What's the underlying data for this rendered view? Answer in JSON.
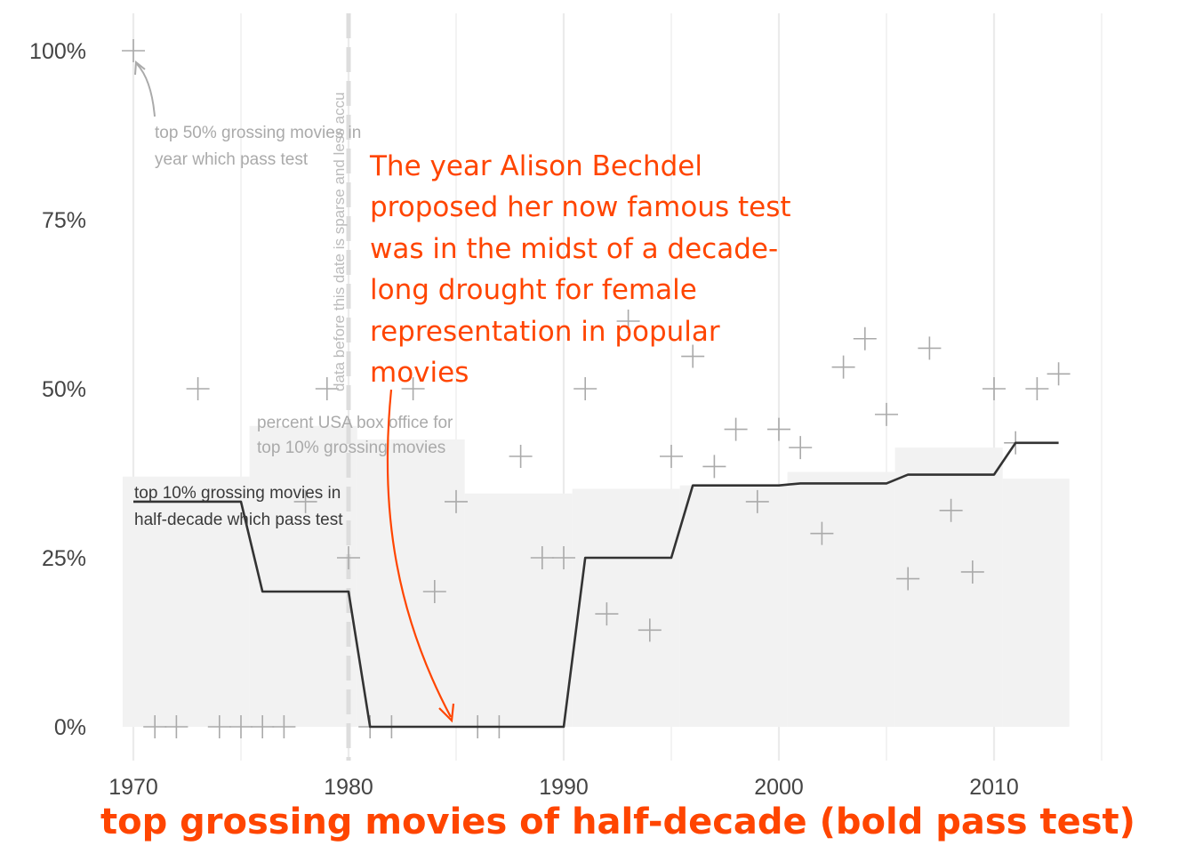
{
  "chart_data": {
    "type": "line",
    "xlabel": "top grossing movies of half-decade (bold pass test)",
    "ylabel": "",
    "xlim": [
      1969.5,
      2016
    ],
    "ylim": [
      -0.05,
      1.03
    ],
    "x_ticks": [
      1970,
      1980,
      1990,
      2000,
      2010
    ],
    "x_tick_labels": [
      "1970",
      "1980",
      "1990",
      "2000",
      "2010"
    ],
    "y_ticks": [
      0,
      0.25,
      0.5,
      0.75,
      1.0
    ],
    "y_tick_labels": [
      "0%",
      "25%",
      "50%",
      "75%",
      "100%"
    ],
    "grid": "vertical",
    "colors": {
      "grid": "#ebebeb",
      "area": "#f2f2f2",
      "line": "#333333",
      "points": "#aaaaaa",
      "accent": "#ff4500",
      "cutoff": "#dddddd"
    },
    "series": [
      {
        "type": "area",
        "name": "percent USA box office for top 10% grossing movies",
        "x_ranges": [
          [
            1969.5,
            1975.4
          ],
          [
            1975.4,
            1980.4
          ],
          [
            1980.4,
            1985.4
          ],
          [
            1985.4,
            1990.4
          ],
          [
            1990.4,
            1995.4
          ],
          [
            1995.4,
            2000.4
          ],
          [
            2000.4,
            2005.4
          ],
          [
            2005.4,
            2010.4
          ],
          [
            2010.4,
            2013.5
          ]
        ],
        "values": [
          0.37,
          0.445,
          0.425,
          0.345,
          0.352,
          0.357,
          0.377,
          0.413,
          0.367
        ]
      },
      {
        "type": "line",
        "name": "top 10% grossing movies in half-decade which pass test",
        "x": [
          1970,
          1975,
          1976,
          1980,
          1981,
          1990,
          1991,
          1995,
          1996,
          2000,
          2001,
          2005,
          2006,
          2010,
          2011,
          2013
        ],
        "y": [
          0.333,
          0.333,
          0.2,
          0.2,
          0.0,
          0.0,
          0.25,
          0.25,
          0.357,
          0.357,
          0.36,
          0.36,
          0.373,
          0.373,
          0.42,
          0.42
        ]
      },
      {
        "type": "scatter",
        "name": "top 50% grossing movies in year which pass test",
        "points": [
          [
            1970,
            1.0
          ],
          [
            1971,
            0.0
          ],
          [
            1972,
            0.0
          ],
          [
            1973,
            0.5
          ],
          [
            1974,
            0.0
          ],
          [
            1975,
            0.0
          ],
          [
            1976,
            0.0
          ],
          [
            1977,
            0.0
          ],
          [
            1978,
            0.333
          ],
          [
            1979,
            0.5
          ],
          [
            1980,
            0.25
          ],
          [
            1981,
            0.0
          ],
          [
            1982,
            0.0
          ],
          [
            1983,
            0.5
          ],
          [
            1984,
            0.2
          ],
          [
            1985,
            0.333
          ],
          [
            1986,
            0.0
          ],
          [
            1987,
            0.0
          ],
          [
            1988,
            0.4
          ],
          [
            1989,
            0.25
          ],
          [
            1990,
            0.25
          ],
          [
            1991,
            0.5
          ],
          [
            1992,
            0.167
          ],
          [
            1993,
            0.6
          ],
          [
            1994,
            0.143
          ],
          [
            1995,
            0.4
          ],
          [
            1996,
            0.548
          ],
          [
            1997,
            0.385
          ],
          [
            1998,
            0.44
          ],
          [
            1999,
            0.333
          ],
          [
            2000,
            0.44
          ],
          [
            2001,
            0.413
          ],
          [
            2002,
            0.286
          ],
          [
            2003,
            0.532
          ],
          [
            2004,
            0.574
          ],
          [
            2005,
            0.462
          ],
          [
            2006,
            0.219
          ],
          [
            2007,
            0.56
          ],
          [
            2008,
            0.32
          ],
          [
            2009,
            0.229
          ],
          [
            2010,
            0.5
          ],
          [
            2011,
            0.42
          ],
          [
            2012,
            0.5
          ],
          [
            2013,
            0.522
          ]
        ]
      }
    ],
    "cutoff_year": 1980,
    "cutoff_label": "data before this date is sparse and less accu",
    "annotations": {
      "points_label_1": "top 50% grossing movies in",
      "points_label_2": "year which pass test",
      "area_label_1": "percent USA box office for",
      "area_label_2": "top 10% grossing movies",
      "line_label_1": "top 10% grossing movies in",
      "line_label_2": "half-decade which pass test",
      "callout_lines": [
        "The year Alison Bechdel",
        "proposed her now famous test",
        "was in the midst of a decade-",
        "long drought for female",
        "representation in popular",
        "movies"
      ],
      "callout_target_year": 1985
    }
  }
}
